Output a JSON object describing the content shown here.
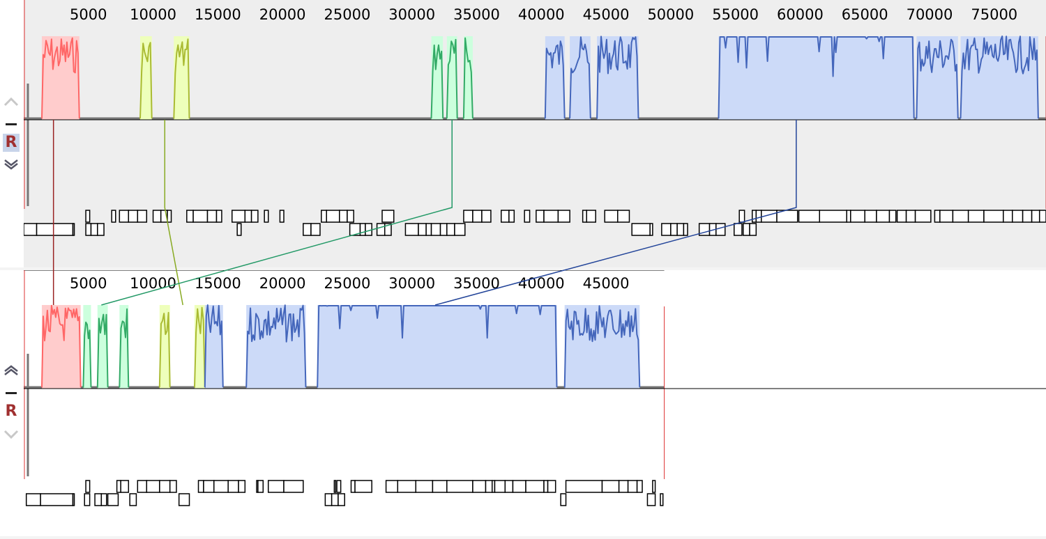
{
  "genomes": [
    {
      "id": "genome-1",
      "length": 79000,
      "ticks": [
        5000,
        10000,
        15000,
        20000,
        25000,
        30000,
        35000,
        40000,
        45000,
        50000,
        55000,
        60000,
        65000,
        70000,
        75000
      ],
      "tick_labels": [
        "5000",
        "10000",
        "15000",
        "20000",
        "25000",
        "30000",
        "35000",
        "40000",
        "45000",
        "50000",
        "55000",
        "60000",
        "65000",
        "70000",
        "75000"
      ],
      "background": "#eeeeee",
      "reference_marker": "R",
      "blocks": [
        {
          "color": "#ff6666",
          "fill": "#ffcccc",
          "start": 1400,
          "end": 4300
        },
        {
          "color": "#aabb33",
          "fill": "#eeffbb",
          "start": 9000,
          "end": 9900
        },
        {
          "color": "#aabb33",
          "fill": "#eeffbb",
          "start": 11600,
          "end": 12800
        },
        {
          "color": "#33aa66",
          "fill": "#ccffdd",
          "start": 31500,
          "end": 32400
        },
        {
          "color": "#33aa66",
          "fill": "#ccffdd",
          "start": 32700,
          "end": 33500
        },
        {
          "color": "#33aa66",
          "fill": "#ccffdd",
          "start": 34000,
          "end": 34700
        },
        {
          "color": "#4466bb",
          "fill": "#ccdaf8",
          "start": 40300,
          "end": 41800
        },
        {
          "color": "#4466bb",
          "fill": "#ccdaf8",
          "start": 42200,
          "end": 43800
        },
        {
          "color": "#4466bb",
          "fill": "#ccdaf8",
          "start": 44300,
          "end": 47500
        },
        {
          "color": "#4466bb",
          "fill": "#ccdaf8",
          "start": 53700,
          "end": 68800
        },
        {
          "color": "#4466bb",
          "fill": "#ccdaf8",
          "start": 69000,
          "end": 72200
        },
        {
          "color": "#4466bb",
          "fill": "#ccdaf8",
          "start": 72400,
          "end": 78400
        }
      ],
      "genes_upper": [
        [
          4800,
          5100
        ],
        [
          6800,
          7100
        ],
        [
          7400,
          8100
        ],
        [
          8100,
          8800
        ],
        [
          8800,
          9500
        ],
        [
          10000,
          10600
        ],
        [
          10600,
          11100
        ],
        [
          11100,
          11400
        ],
        [
          12600,
          13100
        ],
        [
          13100,
          14200
        ],
        [
          14200,
          14900
        ],
        [
          14900,
          15300
        ],
        [
          16100,
          17100
        ],
        [
          17100,
          17600
        ],
        [
          17600,
          18100
        ],
        [
          18600,
          18900
        ],
        [
          19800,
          20100
        ],
        [
          23000,
          23400
        ],
        [
          23400,
          24400
        ],
        [
          24400,
          25000
        ],
        [
          25000,
          25500
        ],
        [
          27700,
          28600
        ],
        [
          34000,
          34700
        ],
        [
          34700,
          35400
        ],
        [
          35400,
          36100
        ],
        [
          36900,
          37500
        ],
        [
          37500,
          37900
        ],
        [
          38700,
          39100
        ],
        [
          39600,
          40200
        ],
        [
          40200,
          41300
        ],
        [
          41300,
          42200
        ],
        [
          43200,
          43500
        ],
        [
          43500,
          44200
        ],
        [
          44900,
          45900
        ],
        [
          45900,
          46800
        ],
        [
          55300,
          55700
        ],
        [
          56300,
          56600
        ],
        [
          56600,
          57000
        ],
        [
          57000,
          58200
        ],
        [
          58200,
          59800
        ],
        [
          59900,
          61500
        ],
        [
          61500,
          63600
        ],
        [
          63600,
          63900
        ],
        [
          63900,
          65000
        ],
        [
          65000,
          65900
        ],
        [
          65900,
          66900
        ],
        [
          66900,
          67400
        ],
        [
          67500,
          68200
        ],
        [
          68200,
          68900
        ],
        [
          68900,
          70100
        ],
        [
          70400,
          70800
        ],
        [
          70800,
          71800
        ],
        [
          71800,
          73000
        ],
        [
          73000,
          74200
        ],
        [
          74200,
          75700
        ],
        [
          75700,
          76400
        ],
        [
          76400,
          77200
        ],
        [
          77200,
          77900
        ],
        [
          77900,
          78500
        ],
        [
          78500,
          79000
        ]
      ],
      "genes_lower": [
        [
          0,
          1000
        ],
        [
          1000,
          3800
        ],
        [
          3800,
          3900
        ],
        [
          4800,
          5200
        ],
        [
          5200,
          5700
        ],
        [
          5700,
          6200
        ],
        [
          16500,
          16800
        ],
        [
          21600,
          22200
        ],
        [
          22200,
          22900
        ],
        [
          25200,
          26000
        ],
        [
          26000,
          26400
        ],
        [
          26400,
          26900
        ],
        [
          27300,
          27900
        ],
        [
          27900,
          28400
        ],
        [
          29500,
          30500
        ],
        [
          30500,
          31100
        ],
        [
          31100,
          31500
        ],
        [
          31500,
          32200
        ],
        [
          32200,
          32700
        ],
        [
          32700,
          33300
        ],
        [
          33300,
          34100
        ],
        [
          47000,
          48400
        ],
        [
          48400,
          48600
        ],
        [
          49300,
          50000
        ],
        [
          50000,
          50500
        ],
        [
          50500,
          51000
        ],
        [
          51000,
          51300
        ],
        [
          52200,
          53000
        ],
        [
          53000,
          53500
        ],
        [
          53500,
          54200
        ],
        [
          54900,
          55500
        ],
        [
          55600,
          56100
        ],
        [
          56100,
          56600
        ]
      ]
    },
    {
      "id": "genome-2",
      "length": 49500,
      "ticks": [
        5000,
        10000,
        15000,
        20000,
        25000,
        30000,
        35000,
        40000,
        45000
      ],
      "tick_labels": [
        "5000",
        "10000",
        "15000",
        "20000",
        "25000",
        "30000",
        "35000",
        "40000",
        "45000"
      ],
      "background": "#ffffff",
      "reference_marker": "R",
      "blocks": [
        {
          "color": "#ff6666",
          "fill": "#ffcccc",
          "start": 1400,
          "end": 4400
        },
        {
          "color": "#33aa66",
          "fill": "#ccffdd",
          "start": 4600,
          "end": 5200
        },
        {
          "color": "#33aa66",
          "fill": "#ccffdd",
          "start": 5700,
          "end": 6500
        },
        {
          "color": "#33aa66",
          "fill": "#ccffdd",
          "start": 7400,
          "end": 8100
        },
        {
          "color": "#aabb33",
          "fill": "#eeffbb",
          "start": 10500,
          "end": 11300
        },
        {
          "color": "#aabb33",
          "fill": "#eeffbb",
          "start": 13200,
          "end": 14000
        },
        {
          "color": "#4466bb",
          "fill": "#ccdaf8",
          "start": 14000,
          "end": 15400
        },
        {
          "color": "#4466bb",
          "fill": "#ccdaf8",
          "start": 17200,
          "end": 21800
        },
        {
          "color": "#4466bb",
          "fill": "#ccdaf8",
          "start": 22700,
          "end": 41200
        },
        {
          "color": "#4466bb",
          "fill": "#ccdaf8",
          "start": 41800,
          "end": 47600
        }
      ],
      "genes_upper": [
        [
          4800,
          5100
        ],
        [
          7200,
          7500
        ],
        [
          7500,
          8100
        ],
        [
          8800,
          9500
        ],
        [
          9500,
          10500
        ],
        [
          10500,
          11300
        ],
        [
          11300,
          11800
        ],
        [
          13500,
          13900
        ],
        [
          13900,
          14700
        ],
        [
          14700,
          15800
        ],
        [
          15800,
          16600
        ],
        [
          16600,
          17100
        ],
        [
          18000,
          18100
        ],
        [
          18100,
          18500
        ],
        [
          18900,
          20100
        ],
        [
          20100,
          21600
        ],
        [
          24000,
          24100
        ],
        [
          24200,
          24500
        ],
        [
          25300,
          25600
        ],
        [
          25600,
          26900
        ],
        [
          28000,
          28900
        ],
        [
          28900,
          30300
        ],
        [
          30300,
          31600
        ],
        [
          31600,
          32700
        ],
        [
          32700,
          34700
        ],
        [
          34700,
          35700
        ],
        [
          35700,
          36200
        ],
        [
          36200,
          36400
        ],
        [
          36400,
          37200
        ],
        [
          37200,
          37800
        ],
        [
          37800,
          38800
        ],
        [
          38800,
          40200
        ],
        [
          40200,
          40500
        ],
        [
          40500,
          41100
        ],
        [
          41900,
          44700
        ],
        [
          44700,
          46000
        ],
        [
          46000,
          46700
        ],
        [
          46700,
          47400
        ],
        [
          47400,
          47800
        ],
        [
          48600,
          48800
        ]
      ],
      "genes_lower": [
        [
          200,
          1300
        ],
        [
          1300,
          3800
        ],
        [
          3800,
          3900
        ],
        [
          4700,
          5100
        ],
        [
          5500,
          6000
        ],
        [
          6000,
          6400
        ],
        [
          6500,
          7300
        ],
        [
          8200,
          8700
        ],
        [
          12000,
          12800
        ],
        [
          23300,
          23800
        ],
        [
          23800,
          24300
        ],
        [
          24300,
          24800
        ],
        [
          41500,
          41900
        ],
        [
          48200,
          48800
        ],
        [
          49200,
          49400
        ]
      ]
    }
  ],
  "connectors": [
    {
      "color": "#992222",
      "from_pos": 2300,
      "to_pos": 2300
    },
    {
      "color": "#88aa22",
      "from_pos": 10900,
      "to_pos": 12300
    },
    {
      "color": "#229966",
      "from_pos": 33100,
      "to_pos": 6000
    },
    {
      "color": "#224499",
      "from_pos": 59700,
      "to_pos": 31800
    }
  ],
  "colors": {
    "profile_line": "#777777",
    "gene_stroke": "#000000",
    "boundary": "#dd3333",
    "axis_line": "#000000"
  },
  "icons": {
    "shift_up": "chevron-up-icon",
    "remove": "minus-icon",
    "reference": "reference-R-icon",
    "shift_down": "chevron-down-icon"
  }
}
